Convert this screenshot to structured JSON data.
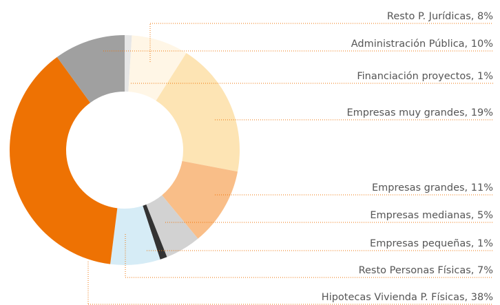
{
  "chart_data": {
    "type": "donut",
    "value_labels": [
      "Financiación proyectos, 1%",
      "Resto P. Jurídicas, 8%",
      "Empresas muy grandes, 19%",
      "Empresas grandes, 11%",
      "Empresas medianas, 5%",
      "Empresas pequeñas, 1%",
      "Resto Personas Físicas, 7%",
      "Hipotecas Vivienda P. Físicas, 38%",
      "Administración Pública, 10%"
    ],
    "values": [
      1,
      8,
      19,
      11,
      5,
      1,
      7,
      38,
      10
    ],
    "colors": [
      "#e6e6e6",
      "#fff6e6",
      "#fde4b4",
      "#f9be88",
      "#d2d2d2",
      "#333333",
      "#d6ecf6",
      "#ee7203",
      "#a0a0a0"
    ]
  }
}
